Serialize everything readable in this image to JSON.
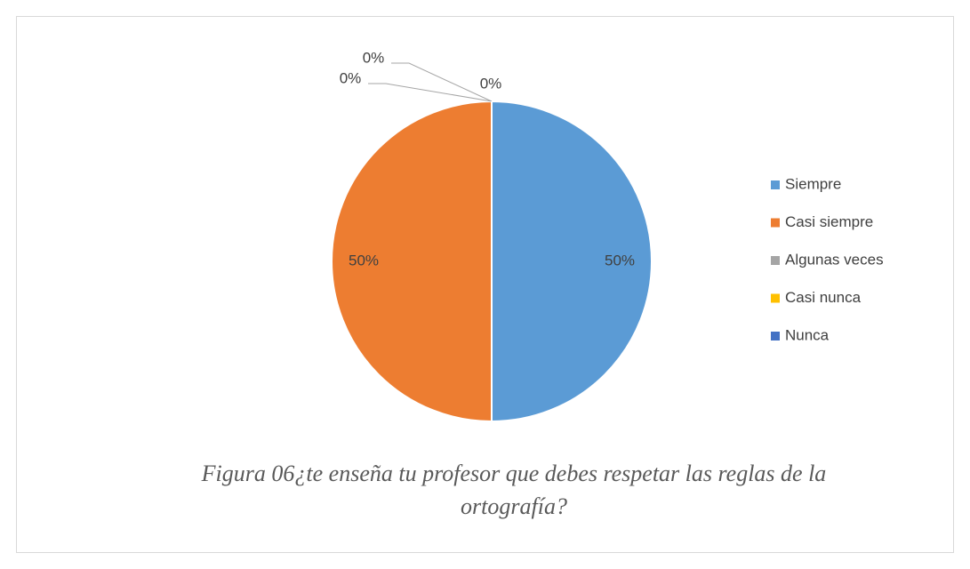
{
  "chart_data": {
    "type": "pie",
    "title": "Figura 06¿te enseña tu profesor que debes respetar las reglas de la ortografía?",
    "categories": [
      "Siempre",
      "Casi siempre",
      "Algunas veces",
      "Casi nunca",
      "Nunca"
    ],
    "values": [
      50,
      50,
      0,
      0,
      0
    ],
    "value_labels": [
      "50%",
      "50%",
      "0%",
      "0%",
      "0%"
    ],
    "colors": [
      "#5b9bd5",
      "#ed7d31",
      "#a5a5a5",
      "#ffc000",
      "#4472c4"
    ],
    "legend": "right"
  }
}
